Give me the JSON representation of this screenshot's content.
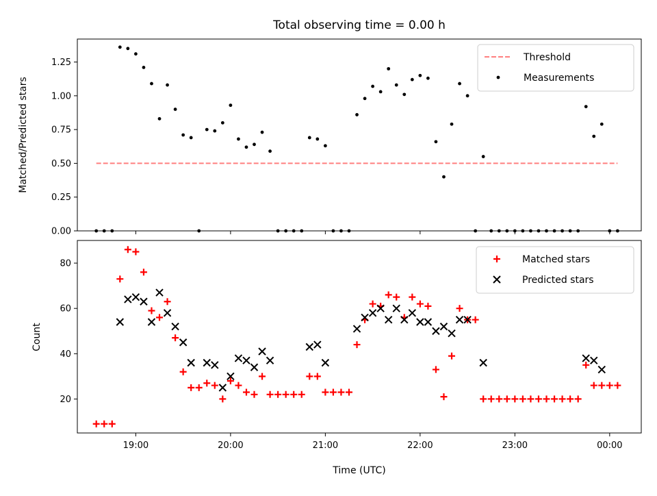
{
  "chart_data": [
    {
      "panel": "top",
      "type": "scatter",
      "title": "Total observing time = 0.00 h",
      "ylabel": "Matched/Predicted stars",
      "xlim": [
        "18:23",
        "00:20"
      ],
      "ylim": [
        0,
        1.42
      ],
      "yticks": [
        "0.00",
        "0.25",
        "0.50",
        "0.75",
        "1.00",
        "1.25"
      ],
      "grid": false,
      "legend_position": "top-right",
      "threshold": {
        "name": "Threshold",
        "value": 0.5,
        "x_start": "18:35",
        "x_end": "00:05",
        "color": "#ff7f7f",
        "style": "dashed"
      },
      "series": [
        {
          "name": "Measurements",
          "color": "#000000",
          "marker": "dot",
          "points": [
            [
              "18:35",
              0
            ],
            [
              "18:40",
              0
            ],
            [
              "18:45",
              0
            ],
            [
              "18:50",
              1.36
            ],
            [
              "18:55",
              1.35
            ],
            [
              "19:00",
              1.31
            ],
            [
              "19:05",
              1.21
            ],
            [
              "19:10",
              1.09
            ],
            [
              "19:15",
              0.83
            ],
            [
              "19:20",
              1.08
            ],
            [
              "19:25",
              0.9
            ],
            [
              "19:30",
              0.71
            ],
            [
              "19:35",
              0.69
            ],
            [
              "19:40",
              0
            ],
            [
              "19:45",
              0.75
            ],
            [
              "19:50",
              0.74
            ],
            [
              "19:55",
              0.8
            ],
            [
              "20:00",
              0.93
            ],
            [
              "20:05",
              0.68
            ],
            [
              "20:10",
              0.62
            ],
            [
              "20:15",
              0.64
            ],
            [
              "20:20",
              0.73
            ],
            [
              "20:25",
              0.59
            ],
            [
              "20:30",
              0
            ],
            [
              "20:35",
              0
            ],
            [
              "20:40",
              0
            ],
            [
              "20:45",
              0
            ],
            [
              "20:50",
              0.69
            ],
            [
              "20:55",
              0.68
            ],
            [
              "21:00",
              0.63
            ],
            [
              "21:05",
              0
            ],
            [
              "21:10",
              0
            ],
            [
              "21:15",
              0
            ],
            [
              "21:20",
              0.86
            ],
            [
              "21:25",
              0.98
            ],
            [
              "21:30",
              1.07
            ],
            [
              "21:35",
              1.03
            ],
            [
              "21:40",
              1.2
            ],
            [
              "21:45",
              1.08
            ],
            [
              "21:50",
              1.01
            ],
            [
              "21:55",
              1.12
            ],
            [
              "22:00",
              1.15
            ],
            [
              "22:05",
              1.13
            ],
            [
              "22:10",
              0.66
            ],
            [
              "22:15",
              0.4
            ],
            [
              "22:20",
              0.79
            ],
            [
              "22:25",
              1.09
            ],
            [
              "22:30",
              1.0
            ],
            [
              "22:35",
              0
            ],
            [
              "22:40",
              0.55
            ],
            [
              "22:45",
              0
            ],
            [
              "22:50",
              0
            ],
            [
              "22:55",
              0
            ],
            [
              "23:00",
              0
            ],
            [
              "23:05",
              0
            ],
            [
              "23:10",
              0
            ],
            [
              "23:15",
              0
            ],
            [
              "23:20",
              0
            ],
            [
              "23:25",
              0
            ],
            [
              "23:30",
              0
            ],
            [
              "23:35",
              0
            ],
            [
              "23:40",
              0
            ],
            [
              "23:45",
              0.92
            ],
            [
              "23:50",
              0.7
            ],
            [
              "23:55",
              0.79
            ],
            [
              "00:00",
              0
            ],
            [
              "00:05",
              0
            ]
          ]
        }
      ]
    },
    {
      "panel": "bottom",
      "type": "scatter",
      "xlabel": "Time (UTC)",
      "ylabel": "Count",
      "xlim": [
        "18:23",
        "00:20"
      ],
      "ylim": [
        5,
        90
      ],
      "xticks": [
        "19:00",
        "20:00",
        "21:00",
        "22:00",
        "23:00",
        "00:00"
      ],
      "yticks": [
        "20",
        "40",
        "60",
        "80"
      ],
      "grid": false,
      "legend_position": "top-right",
      "series": [
        {
          "name": "Matched stars",
          "color": "#ff0000",
          "marker": "plus",
          "points": [
            [
              "18:35",
              9
            ],
            [
              "18:40",
              9
            ],
            [
              "18:45",
              9
            ],
            [
              "18:50",
              73
            ],
            [
              "18:55",
              86
            ],
            [
              "19:00",
              85
            ],
            [
              "19:05",
              76
            ],
            [
              "19:10",
              59
            ],
            [
              "19:15",
              56
            ],
            [
              "19:20",
              63
            ],
            [
              "19:25",
              47
            ],
            [
              "19:30",
              32
            ],
            [
              "19:35",
              25
            ],
            [
              "19:40",
              25
            ],
            [
              "19:45",
              27
            ],
            [
              "19:50",
              26
            ],
            [
              "19:55",
              20
            ],
            [
              "20:00",
              28
            ],
            [
              "20:05",
              26
            ],
            [
              "20:10",
              23
            ],
            [
              "20:15",
              22
            ],
            [
              "20:20",
              30
            ],
            [
              "20:25",
              22
            ],
            [
              "20:30",
              22
            ],
            [
              "20:35",
              22
            ],
            [
              "20:40",
              22
            ],
            [
              "20:45",
              22
            ],
            [
              "20:50",
              30
            ],
            [
              "20:55",
              30
            ],
            [
              "21:00",
              23
            ],
            [
              "21:05",
              23
            ],
            [
              "21:10",
              23
            ],
            [
              "21:15",
              23
            ],
            [
              "21:20",
              44
            ],
            [
              "21:25",
              55
            ],
            [
              "21:30",
              62
            ],
            [
              "21:35",
              61
            ],
            [
              "21:40",
              66
            ],
            [
              "21:45",
              65
            ],
            [
              "21:50",
              56
            ],
            [
              "21:55",
              65
            ],
            [
              "22:00",
              62
            ],
            [
              "22:05",
              61
            ],
            [
              "22:10",
              33
            ],
            [
              "22:15",
              21
            ],
            [
              "22:20",
              39
            ],
            [
              "22:25",
              60
            ],
            [
              "22:30",
              55
            ],
            [
              "22:35",
              55
            ],
            [
              "22:40",
              20
            ],
            [
              "22:45",
              20
            ],
            [
              "22:50",
              20
            ],
            [
              "22:55",
              20
            ],
            [
              "23:00",
              20
            ],
            [
              "23:05",
              20
            ],
            [
              "23:10",
              20
            ],
            [
              "23:15",
              20
            ],
            [
              "23:20",
              20
            ],
            [
              "23:25",
              20
            ],
            [
              "23:30",
              20
            ],
            [
              "23:35",
              20
            ],
            [
              "23:40",
              20
            ],
            [
              "23:45",
              35
            ],
            [
              "23:50",
              26
            ],
            [
              "23:55",
              26
            ],
            [
              "00:00",
              26
            ],
            [
              "00:05",
              26
            ]
          ]
        },
        {
          "name": "Predicted stars",
          "color": "#000000",
          "marker": "x",
          "points": [
            [
              "18:50",
              54
            ],
            [
              "18:55",
              64
            ],
            [
              "19:00",
              65
            ],
            [
              "19:05",
              63
            ],
            [
              "19:10",
              54
            ],
            [
              "19:15",
              67
            ],
            [
              "19:20",
              58
            ],
            [
              "19:25",
              52
            ],
            [
              "19:30",
              45
            ],
            [
              "19:35",
              36
            ],
            [
              "19:45",
              36
            ],
            [
              "19:50",
              35
            ],
            [
              "19:55",
              25
            ],
            [
              "20:00",
              30
            ],
            [
              "20:05",
              38
            ],
            [
              "20:10",
              37
            ],
            [
              "20:15",
              34
            ],
            [
              "20:20",
              41
            ],
            [
              "20:25",
              37
            ],
            [
              "20:50",
              43
            ],
            [
              "20:55",
              44
            ],
            [
              "21:00",
              36
            ],
            [
              "21:20",
              51
            ],
            [
              "21:25",
              56
            ],
            [
              "21:30",
              58
            ],
            [
              "21:35",
              60
            ],
            [
              "21:40",
              55
            ],
            [
              "21:45",
              60
            ],
            [
              "21:50",
              55
            ],
            [
              "21:55",
              58
            ],
            [
              "22:00",
              54
            ],
            [
              "22:05",
              54
            ],
            [
              "22:10",
              50
            ],
            [
              "22:15",
              52
            ],
            [
              "22:20",
              49
            ],
            [
              "22:25",
              55
            ],
            [
              "22:30",
              55
            ],
            [
              "22:40",
              36
            ],
            [
              "23:45",
              38
            ],
            [
              "23:50",
              37
            ],
            [
              "23:55",
              33
            ]
          ]
        }
      ]
    }
  ]
}
